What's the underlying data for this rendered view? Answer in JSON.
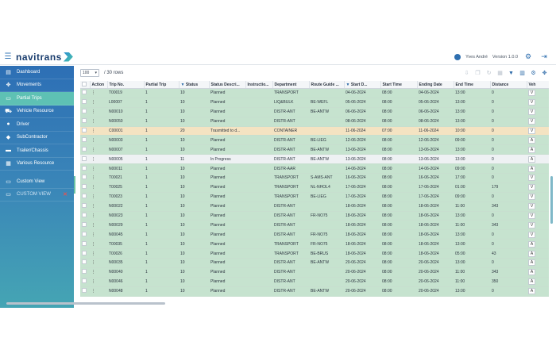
{
  "header": {
    "logo_text": "navitrans",
    "user_name": "Yves André",
    "version": "Version 1.0.0",
    "icons": [
      "menu-icon",
      "user-icon",
      "gear-icon",
      "logout-icon"
    ]
  },
  "sidebar": {
    "items": [
      {
        "label": "Dashboard",
        "icon": "dashboard-icon",
        "active": false
      },
      {
        "label": "Movements",
        "icon": "movements-icon",
        "active": false
      },
      {
        "label": "Partial Trips",
        "icon": "partial-trips-icon",
        "active": true
      },
      {
        "label": "Vehicle Resource",
        "icon": "truck-icon",
        "active": false
      },
      {
        "label": "Driver",
        "icon": "driver-icon",
        "active": false
      },
      {
        "label": "SubContractor",
        "icon": "subcontractor-icon",
        "active": false
      },
      {
        "label": "Trailer/Chassis",
        "icon": "trailer-icon",
        "active": false
      },
      {
        "label": "Various Resource",
        "icon": "various-resource-icon",
        "active": false
      }
    ],
    "custom_items": [
      {
        "label": "Custom View",
        "icon": "custom-view-icon"
      },
      {
        "label": "CUSTOM VIEW",
        "icon": "custom-view-icon",
        "closable": true
      }
    ]
  },
  "toolbar": {
    "page_size": "100",
    "rows_text": "/ 30 rows",
    "icons": [
      "export-icon",
      "copy-icon",
      "reset-icon",
      "columns-icon",
      "filter-icon",
      "chart-icon",
      "settings-icon",
      "share-icon"
    ]
  },
  "table": {
    "columns": [
      "",
      "Action",
      "Trip No.",
      "Partial Trip",
      "Status",
      "Status Descri...",
      "Instructio...",
      "Department",
      "Route Guide ...",
      "Start D...",
      "Start Time",
      "Ending Date",
      "End Time",
      "Distance",
      "Veh"
    ],
    "rows": [
      {
        "style": "green",
        "trip": "T00019",
        "partial": "1",
        "status": "10",
        "desc": "Planned",
        "dept": "TRANSPORT",
        "route": "",
        "start_date": "04-06-2024",
        "start_time": "08:00",
        "end_date": "04-06-2024",
        "end_time": "13:00",
        "distance": "0",
        "veh": "V"
      },
      {
        "style": "green",
        "trip": "L00007",
        "partial": "1",
        "status": "10",
        "desc": "Planned",
        "dept": "LIQ&BULK",
        "route": "BE-WEFL",
        "start_date": "05-06-2024",
        "start_time": "08:00",
        "end_date": "05-06-2024",
        "end_time": "13:00",
        "distance": "0",
        "veh": "V"
      },
      {
        "style": "green",
        "trip": "N00010",
        "partial": "1",
        "status": "10",
        "desc": "Planned",
        "dept": "DISTR-ANT",
        "route": "BE-ANTW",
        "start_date": "06-06-2024",
        "start_time": "08:00",
        "end_date": "06-06-2024",
        "end_time": "13:00",
        "distance": "0",
        "veh": "V"
      },
      {
        "style": "green",
        "trip": "N00050",
        "partial": "1",
        "status": "10",
        "desc": "Planned",
        "dept": "DISTR-ANT",
        "route": "",
        "start_date": "08-06-2024",
        "start_time": "08:00",
        "end_date": "08-06-2024",
        "end_time": "13:00",
        "distance": "0",
        "veh": "V"
      },
      {
        "style": "yellow",
        "trip": "C00001",
        "partial": "1",
        "status": "20",
        "desc": "Trasmitted to d...",
        "dept": "CONTAINER",
        "route": "",
        "start_date": "11-06-2024",
        "start_time": "07:00",
        "end_date": "11-06-2024",
        "end_time": "10:00",
        "distance": "0",
        "veh": "V"
      },
      {
        "style": "green",
        "trip": "N00003",
        "partial": "1",
        "status": "10",
        "desc": "Planned",
        "dept": "DISTR-ANT",
        "route": "BE-LIEG",
        "start_date": "12-06-2024",
        "start_time": "08:00",
        "end_date": "12-06-2024",
        "end_time": "09:00",
        "distance": "0",
        "veh": "A"
      },
      {
        "style": "green",
        "trip": "N00007",
        "partial": "1",
        "status": "10",
        "desc": "Planned",
        "dept": "DISTR-ANT",
        "route": "BE-ANTW",
        "start_date": "13-06-2024",
        "start_time": "08:00",
        "end_date": "13-06-2024",
        "end_time": "13:00",
        "distance": "0",
        "veh": "A"
      },
      {
        "style": "white",
        "trip": "N00005",
        "partial": "1",
        "status": "11",
        "desc": "In Progress",
        "dept": "DISTR-ANT",
        "route": "BE-ANTW",
        "start_date": "13-06-2024",
        "start_time": "08:00",
        "end_date": "13-06-2024",
        "end_time": "13:00",
        "distance": "0",
        "veh": "A"
      },
      {
        "style": "green",
        "trip": "N00011",
        "partial": "1",
        "status": "10",
        "desc": "Planned",
        "dept": "DISTR-AAR",
        "route": "",
        "start_date": "14-06-2024",
        "start_time": "08:00",
        "end_date": "14-06-2024",
        "end_time": "09:00",
        "distance": "0",
        "veh": "A"
      },
      {
        "style": "green",
        "trip": "T00021",
        "partial": "1",
        "status": "10",
        "desc": "Planned",
        "dept": "TRANSPORT",
        "route": "S-AMS-ANT",
        "start_date": "16-06-2024",
        "start_time": "08:00",
        "end_date": "16-06-2024",
        "end_time": "17:00",
        "distance": "0",
        "veh": "V"
      },
      {
        "style": "green",
        "trip": "T00025",
        "partial": "1",
        "status": "10",
        "desc": "Planned",
        "dept": "TRANSPORT",
        "route": "NL-NHOL4",
        "start_date": "17-06-2024",
        "start_time": "08:00",
        "end_date": "17-06-2024",
        "end_time": "01:00",
        "distance": "179",
        "veh": "V"
      },
      {
        "style": "green",
        "trip": "T00023",
        "partial": "1",
        "status": "10",
        "desc": "Planned",
        "dept": "TRANSPORT",
        "route": "BE-LIEG",
        "start_date": "17-06-2024",
        "start_time": "08:00",
        "end_date": "17-06-2024",
        "end_time": "09:00",
        "distance": "0",
        "veh": "V"
      },
      {
        "style": "green",
        "trip": "N00022",
        "partial": "1",
        "status": "10",
        "desc": "Planned",
        "dept": "DISTR-ANT",
        "route": "",
        "start_date": "18-06-2024",
        "start_time": "08:00",
        "end_date": "18-06-2024",
        "end_time": "11:00",
        "distance": "343",
        "veh": "V"
      },
      {
        "style": "green",
        "trip": "N00023",
        "partial": "1",
        "status": "10",
        "desc": "Planned",
        "dept": "DISTR-ANT",
        "route": "FR-NO75",
        "start_date": "18-06-2024",
        "start_time": "08:00",
        "end_date": "18-06-2024",
        "end_time": "13:00",
        "distance": "0",
        "veh": "V"
      },
      {
        "style": "green",
        "trip": "N00029",
        "partial": "1",
        "status": "10",
        "desc": "Planned",
        "dept": "DISTR-ANT",
        "route": "",
        "start_date": "18-06-2024",
        "start_time": "08:00",
        "end_date": "18-06-2024",
        "end_time": "11:00",
        "distance": "343",
        "veh": "V"
      },
      {
        "style": "green",
        "trip": "N00045",
        "partial": "1",
        "status": "10",
        "desc": "Planned",
        "dept": "DISTR-ANT",
        "route": "FR-NO75",
        "start_date": "18-06-2024",
        "start_time": "08:00",
        "end_date": "18-06-2024",
        "end_time": "13:00",
        "distance": "0",
        "veh": "V"
      },
      {
        "style": "green",
        "trip": "T00035",
        "partial": "1",
        "status": "10",
        "desc": "Planned",
        "dept": "TRANSPORT",
        "route": "FR-NO75",
        "start_date": "18-06-2024",
        "start_time": "08:00",
        "end_date": "18-06-2024",
        "end_time": "13:00",
        "distance": "0",
        "veh": "A"
      },
      {
        "style": "green",
        "trip": "T00026",
        "partial": "1",
        "status": "10",
        "desc": "Planned",
        "dept": "TRANSPORT",
        "route": "BE-BRUS",
        "start_date": "18-06-2024",
        "start_time": "08:00",
        "end_date": "18-06-2024",
        "end_time": "05:00",
        "distance": "43",
        "veh": "A"
      },
      {
        "style": "green",
        "trip": "N00035",
        "partial": "1",
        "status": "10",
        "desc": "Planned",
        "dept": "DISTR-ANT",
        "route": "BE-ANTW",
        "start_date": "20-06-2024",
        "start_time": "08:00",
        "end_date": "20-06-2024",
        "end_time": "13:00",
        "distance": "0",
        "veh": "A"
      },
      {
        "style": "green",
        "trip": "N00040",
        "partial": "1",
        "status": "10",
        "desc": "Planned",
        "dept": "DISTR-ANT",
        "route": "",
        "start_date": "20-06-2024",
        "start_time": "08:00",
        "end_date": "20-06-2024",
        "end_time": "11:00",
        "distance": "343",
        "veh": "A"
      },
      {
        "style": "green",
        "trip": "N00046",
        "partial": "1",
        "status": "10",
        "desc": "Planned",
        "dept": "DISTR-ANT",
        "route": "",
        "start_date": "20-06-2024",
        "start_time": "08:00",
        "end_date": "20-06-2024",
        "end_time": "11:00",
        "distance": "350",
        "veh": "A"
      },
      {
        "style": "green",
        "trip": "N00048",
        "partial": "1",
        "status": "10",
        "desc": "Planned",
        "dept": "DISTR-ANT",
        "route": "BE-ANTW",
        "start_date": "20-06-2024",
        "start_time": "08:00",
        "end_date": "20-06-2024",
        "end_time": "13:00",
        "distance": "0",
        "veh": "A"
      }
    ]
  },
  "colors": {
    "accent": "#2d6fb5",
    "active_nav": "#5ec1b4",
    "row_planned": "#c6e3cf",
    "row_transmitted": "#f4e3c2",
    "row_in_progress": "#eef1f3"
  }
}
